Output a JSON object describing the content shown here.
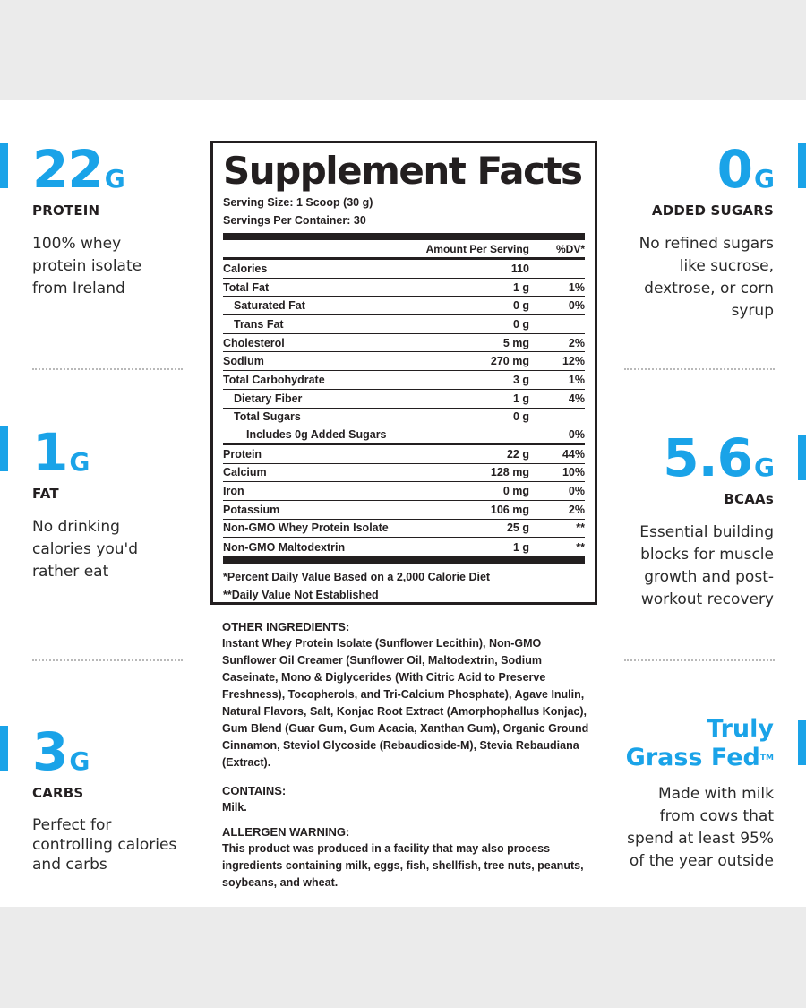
{
  "colors": {
    "accent": "#1aa3e8",
    "text": "#231f20"
  },
  "left": [
    {
      "value": "22",
      "unit": "G",
      "label": "PROTEIN",
      "desc": [
        "100% whey",
        "protein isolate",
        "from Ireland"
      ]
    },
    {
      "value": "1",
      "unit": "G",
      "label": "FAT",
      "desc": [
        "No drinking",
        "calories you'd",
        "rather eat"
      ]
    },
    {
      "value": "3",
      "unit": "G",
      "label": "CARBS",
      "desc": [
        "Perfect for",
        "controlling calories",
        "and carbs"
      ]
    }
  ],
  "right": [
    {
      "value": "0",
      "unit": "G",
      "label": "ADDED SUGARS",
      "desc": [
        "No refined sugars",
        "like sucrose,",
        "dextrose, or corn",
        "syrup"
      ]
    },
    {
      "value": "5.6",
      "unit": "G",
      "label": "BCAAs",
      "desc": [
        "Essential building",
        "blocks for muscle",
        "growth and post-",
        "workout recovery"
      ]
    },
    {
      "title1": "Truly",
      "title2": "Grass Fed",
      "tm": "TM",
      "desc": [
        "Made with milk",
        "from cows that",
        "spend at least 95%",
        "of the year outside"
      ]
    }
  ],
  "facts": {
    "title": "Supplement Facts",
    "serving_size": "Serving Size: 1 Scoop (30 g)",
    "servings_per": "Servings Per Container: 30",
    "col_amount": "Amount Per Serving",
    "col_dv": "%DV*",
    "rows": [
      {
        "name": "Calories",
        "amount": "110",
        "dv": ""
      },
      {
        "name": "Total Fat",
        "amount": "1 g",
        "dv": "1%"
      },
      {
        "name": "Saturated Fat",
        "amount": "0 g",
        "dv": "0%"
      },
      {
        "name": "Trans Fat",
        "amount": "0 g",
        "dv": ""
      },
      {
        "name": "Cholesterol",
        "amount": "5 mg",
        "dv": "2%"
      },
      {
        "name": "Sodium",
        "amount": "270 mg",
        "dv": "12%"
      },
      {
        "name": "Total Carbohydrate",
        "amount": "3 g",
        "dv": "1%"
      },
      {
        "name": "Dietary Fiber",
        "amount": "1 g",
        "dv": "4%"
      },
      {
        "name": "Total Sugars",
        "amount": "0 g",
        "dv": ""
      },
      {
        "name": "Includes 0g Added Sugars",
        "amount": "",
        "dv": "0%"
      },
      {
        "name": "Protein",
        "amount": "22 g",
        "dv": "44%"
      },
      {
        "name": "Calcium",
        "amount": "128 mg",
        "dv": "10%"
      },
      {
        "name": "Iron",
        "amount": "0 mg",
        "dv": "0%"
      },
      {
        "name": "Potassium",
        "amount": "106 mg",
        "dv": "2%"
      },
      {
        "name": "Non-GMO Whey Protein Isolate",
        "amount": "25 g",
        "dv": "**"
      },
      {
        "name": "Non-GMO Maltodextrin",
        "amount": "1 g",
        "dv": "**"
      }
    ],
    "foot1": "*Percent Daily Value Based on a 2,000 Calorie Diet",
    "foot2": "**Daily Value Not Established"
  },
  "ingredients": {
    "other_title": "OTHER INGREDIENTS:",
    "other_text": "Instant Whey Protein Isolate (Sunflower Lecithin), Non-GMO Sunflower Oil Creamer (Sunflower Oil, Maltodextrin, Sodium Caseinate, Mono & Diglycerides (With Citric Acid to Preserve Freshness), Tocopherols, and Tri-Calcium Phosphate), Agave Inulin, Natural Flavors, Salt, Konjac Root Extract (Amorphophallus Konjac), Gum Blend (Guar Gum, Gum Acacia, Xanthan Gum), Organic Ground Cinnamon, Steviol Glycoside (Rebaudioside-M), Stevia Rebaudiana (Extract).",
    "contains_title": "CONTAINS:",
    "contains_text": "Milk.",
    "allergen_title": "ALLERGEN WARNING:",
    "allergen_text": "This product was produced in a facility that may also process ingredients containing milk, eggs, fish, shellfish, tree nuts, peanuts, soybeans, and wheat."
  }
}
